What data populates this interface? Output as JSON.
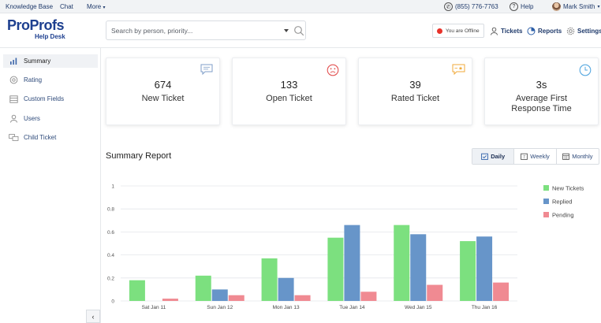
{
  "topbar": {
    "knowledge_base": "Knowledge Base",
    "chat": "Chat",
    "more": "More",
    "phone": "(855) 776-7763",
    "help": "Help",
    "user": "Mark Smith"
  },
  "header": {
    "logo_pro": "Pro",
    "logo_profs": "Profs",
    "logo_sub": "Help Desk",
    "search_placeholder": "Search by person, priority...",
    "offline": "You are Offline",
    "nav": {
      "tickets": "Tickets",
      "reports": "Reports",
      "settings": "Settings"
    }
  },
  "sidebar": {
    "items": [
      {
        "label": "Summary",
        "icon": "bar-chart-icon"
      },
      {
        "label": "Rating",
        "icon": "rating-icon"
      },
      {
        "label": "Custom Fields",
        "icon": "custom-fields-icon"
      },
      {
        "label": "Users",
        "icon": "user-icon"
      },
      {
        "label": "Child Ticket",
        "icon": "child-ticket-icon"
      }
    ],
    "collapse": "‹"
  },
  "cards": [
    {
      "value": "674",
      "label": "New Ticket",
      "icon": "chat-bubble-icon",
      "color": "#7f9ec8"
    },
    {
      "value": "133",
      "label": "Open Ticket",
      "icon": "sad-face-icon",
      "color": "#e35252"
    },
    {
      "value": "39",
      "label": "Rated Ticket",
      "icon": "rated-chat-icon",
      "color": "#f0a93a"
    },
    {
      "value": "3s",
      "label": "Average First Response Time",
      "label_line1": "Average First",
      "label_line2": "Response Time",
      "icon": "clock-icon",
      "color": "#56a8e0"
    }
  ],
  "report": {
    "title": "Summary Report",
    "tabs": [
      "Daily",
      "Weekly",
      "Monthly"
    ],
    "selected_tab": "Daily"
  },
  "chart_data": {
    "type": "bar",
    "categories": [
      "Sat Jan 11",
      "Sun Jan 12",
      "Mon Jan 13",
      "Tue Jan 14",
      "Wed Jan 15",
      "Thu Jan 16"
    ],
    "series": [
      {
        "name": "New Tickets",
        "color": "#7ce07f",
        "values": [
          0.18,
          0.22,
          0.37,
          0.55,
          0.66,
          0.52
        ]
      },
      {
        "name": "Replied",
        "color": "#6795c9",
        "values": [
          0.0,
          0.1,
          0.2,
          0.66,
          0.58,
          0.56
        ]
      },
      {
        "name": "Pending",
        "color": "#f08a92",
        "values": [
          0.02,
          0.05,
          0.05,
          0.08,
          0.14,
          0.16
        ]
      }
    ],
    "yticks": [
      "0",
      "0.2",
      "0.4",
      "0.6",
      "0.8",
      "1"
    ],
    "ylim": [
      0,
      1
    ],
    "legend_position": "right",
    "title": "",
    "xlabel": "",
    "ylabel": ""
  }
}
